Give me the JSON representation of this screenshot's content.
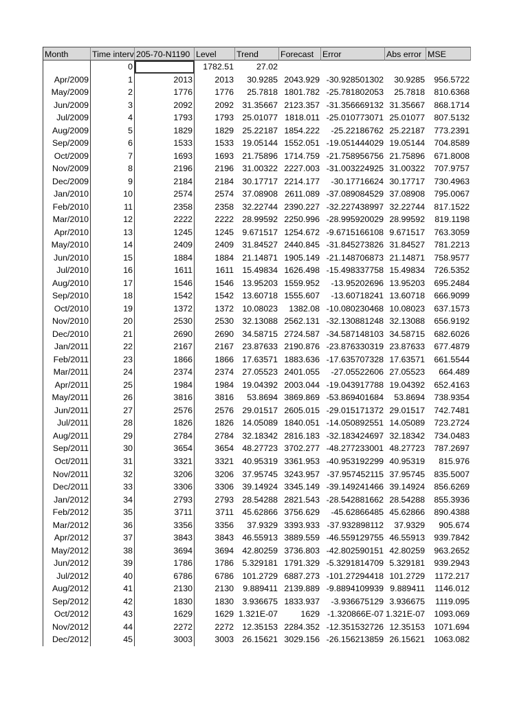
{
  "headers": [
    "Month",
    "Time interval",
    "205-70-N1190",
    "Level",
    "Trend",
    "Forecast",
    "Error",
    "Abs error",
    "MSE"
  ],
  "rows": [
    [
      "",
      "0",
      "",
      "1782.51",
      "27.02",
      "",
      "",
      "",
      ""
    ],
    [
      "Apr/2009",
      "1",
      "2013",
      "2013",
      "30.9285",
      "2043.929",
      "-30.928501302",
      "30.9285",
      "956.5722"
    ],
    [
      "May/2009",
      "2",
      "1776",
      "1776",
      "25.7818",
      "1801.782",
      "-25.781802053",
      "25.7818",
      "810.6368"
    ],
    [
      "Jun/2009",
      "3",
      "2092",
      "2092",
      "31.35667",
      "2123.357",
      "-31.356669132",
      "31.35667",
      "868.1714"
    ],
    [
      "Jul/2009",
      "4",
      "1793",
      "1793",
      "25.01077",
      "1818.011",
      "-25.010773071",
      "25.01077",
      "807.5132"
    ],
    [
      "Aug/2009",
      "5",
      "1829",
      "1829",
      "25.22187",
      "1854.222",
      "-25.22186762",
      "25.22187",
      "773.2391"
    ],
    [
      "Sep/2009",
      "6",
      "1533",
      "1533",
      "19.05144",
      "1552.051",
      "-19.051444029",
      "19.05144",
      "704.8589"
    ],
    [
      "Oct/2009",
      "7",
      "1693",
      "1693",
      "21.75896",
      "1714.759",
      "-21.758956756",
      "21.75896",
      "671.8008"
    ],
    [
      "Nov/2009",
      "8",
      "2196",
      "2196",
      "31.00322",
      "2227.003",
      "-31.003224925",
      "31.00322",
      "707.9757"
    ],
    [
      "Dec/2009",
      "9",
      "2184",
      "2184",
      "30.17717",
      "2214.177",
      "-30.17716624",
      "30.17717",
      "730.4963"
    ],
    [
      "Jan/2010",
      "10",
      "2574",
      "2574",
      "37.08908",
      "2611.089",
      "-37.089084529",
      "37.08908",
      "795.0067"
    ],
    [
      "Feb/2010",
      "11",
      "2358",
      "2358",
      "32.22744",
      "2390.227",
      "-32.227438997",
      "32.22744",
      "817.1522"
    ],
    [
      "Mar/2010",
      "12",
      "2222",
      "2222",
      "28.99592",
      "2250.996",
      "-28.995920029",
      "28.99592",
      "819.1198"
    ],
    [
      "Apr/2010",
      "13",
      "1245",
      "1245",
      "9.671517",
      "1254.672",
      "-9.6715166108",
      "9.671517",
      "763.3059"
    ],
    [
      "May/2010",
      "14",
      "2409",
      "2409",
      "31.84527",
      "2440.845",
      "-31.845273826",
      "31.84527",
      "781.2213"
    ],
    [
      "Jun/2010",
      "15",
      "1884",
      "1884",
      "21.14871",
      "1905.149",
      "-21.148706873",
      "21.14871",
      "758.9577"
    ],
    [
      "Jul/2010",
      "16",
      "1611",
      "1611",
      "15.49834",
      "1626.498",
      "-15.498337758",
      "15.49834",
      "726.5352"
    ],
    [
      "Aug/2010",
      "17",
      "1546",
      "1546",
      "13.95203",
      "1559.952",
      "-13.95202696",
      "13.95203",
      "695.2484"
    ],
    [
      "Sep/2010",
      "18",
      "1542",
      "1542",
      "13.60718",
      "1555.607",
      "-13.60718241",
      "13.60718",
      "666.9099"
    ],
    [
      "Oct/2010",
      "19",
      "1372",
      "1372",
      "10.08023",
      "1382.08",
      "-10.080230468",
      "10.08023",
      "637.1573"
    ],
    [
      "Nov/2010",
      "20",
      "2530",
      "2530",
      "32.13088",
      "2562.131",
      "-32.130881248",
      "32.13088",
      "656.9192"
    ],
    [
      "Dec/2010",
      "21",
      "2690",
      "2690",
      "34.58715",
      "2724.587",
      "-34.587148103",
      "34.58715",
      "682.6026"
    ],
    [
      "Jan/2011",
      "22",
      "2167",
      "2167",
      "23.87633",
      "2190.876",
      "-23.876330319",
      "23.87633",
      "677.4879"
    ],
    [
      "Feb/2011",
      "23",
      "1866",
      "1866",
      "17.63571",
      "1883.636",
      "-17.635707328",
      "17.63571",
      "661.5544"
    ],
    [
      "Mar/2011",
      "24",
      "2374",
      "2374",
      "27.05523",
      "2401.055",
      "-27.05522606",
      "27.05523",
      "664.489"
    ],
    [
      "Apr/2011",
      "25",
      "1984",
      "1984",
      "19.04392",
      "2003.044",
      "-19.043917788",
      "19.04392",
      "652.4163"
    ],
    [
      "May/2011",
      "26",
      "3816",
      "3816",
      "53.8694",
      "3869.869",
      "-53.869401684",
      "53.8694",
      "738.9354"
    ],
    [
      "Jun/2011",
      "27",
      "2576",
      "2576",
      "29.01517",
      "2605.015",
      "-29.015171372",
      "29.01517",
      "742.7481"
    ],
    [
      "Jul/2011",
      "28",
      "1826",
      "1826",
      "14.05089",
      "1840.051",
      "-14.050892551",
      "14.05089",
      "723.2724"
    ],
    [
      "Aug/2011",
      "29",
      "2784",
      "2784",
      "32.18342",
      "2816.183",
      "-32.183424697",
      "32.18342",
      "734.0483"
    ],
    [
      "Sep/2011",
      "30",
      "3654",
      "3654",
      "48.27723",
      "3702.277",
      "-48.277233001",
      "48.27723",
      "787.2697"
    ],
    [
      "Oct/2011",
      "31",
      "3321",
      "3321",
      "40.95319",
      "3361.953",
      "-40.953192299",
      "40.95319",
      "815.976"
    ],
    [
      "Nov/2011",
      "32",
      "3206",
      "3206",
      "37.95745",
      "3243.957",
      "-37.957452115",
      "37.95745",
      "835.5007"
    ],
    [
      "Dec/2011",
      "33",
      "3306",
      "3306",
      "39.14924",
      "3345.149",
      "-39.149241466",
      "39.14924",
      "856.6269"
    ],
    [
      "Jan/2012",
      "34",
      "2793",
      "2793",
      "28.54288",
      "2821.543",
      "-28.542881662",
      "28.54288",
      "855.3936"
    ],
    [
      "Feb/2012",
      "35",
      "3711",
      "3711",
      "45.62866",
      "3756.629",
      "-45.62866485",
      "45.62866",
      "890.4388"
    ],
    [
      "Mar/2012",
      "36",
      "3356",
      "3356",
      "37.9329",
      "3393.933",
      "-37.932898112",
      "37.9329",
      "905.674"
    ],
    [
      "Apr/2012",
      "37",
      "3843",
      "3843",
      "46.55913",
      "3889.559",
      "-46.559129755",
      "46.55913",
      "939.7842"
    ],
    [
      "May/2012",
      "38",
      "3694",
      "3694",
      "42.80259",
      "3736.803",
      "-42.802590151",
      "42.80259",
      "963.2652"
    ],
    [
      "Jun/2012",
      "39",
      "1786",
      "1786",
      "5.329181",
      "1791.329",
      "-5.3291814709",
      "5.329181",
      "939.2943"
    ],
    [
      "Jul/2012",
      "40",
      "6786",
      "6786",
      "101.2729",
      "6887.273",
      "-101.27294418",
      "101.2729",
      "1172.217"
    ],
    [
      "Aug/2012",
      "41",
      "2130",
      "2130",
      "9.889411",
      "2139.889",
      "-9.8894109939",
      "9.889411",
      "1146.012"
    ],
    [
      "Sep/2012",
      "42",
      "1830",
      "1830",
      "3.936675",
      "1833.937",
      "-3.936675129",
      "3.936675",
      "1119.095"
    ],
    [
      "Oct/2012",
      "43",
      "1629",
      "1629",
      "1.321E-07",
      "1629",
      "-1.320866E-07",
      "1.321E-07",
      "1093.069"
    ],
    [
      "Nov/2012",
      "44",
      "2272",
      "2272",
      "12.35153",
      "2284.352",
      "-12.351532726",
      "12.35153",
      "1071.694"
    ],
    [
      "Dec/2012",
      "45",
      "3003",
      "3003",
      "26.15621",
      "3029.156",
      "-26.156213859",
      "26.15621",
      "1063.082"
    ]
  ]
}
